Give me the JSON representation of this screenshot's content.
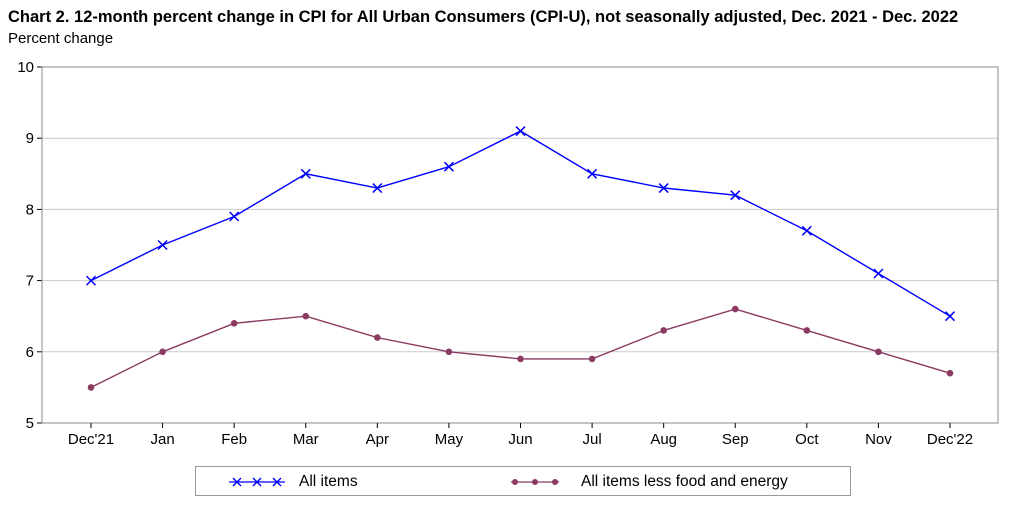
{
  "header": {
    "title": "Chart 2. 12-month percent change in CPI for All Urban Consumers (CPI-U), not seasonally adjusted, Dec. 2021 - Dec. 2022",
    "y_unit": "Percent change"
  },
  "legend": {
    "items": [
      {
        "label": "All items",
        "color": "#0000ff",
        "marker": "x-cross"
      },
      {
        "label": "All items less food and energy",
        "color": "#8b3a62",
        "marker": "dot"
      }
    ],
    "placement": "bottom-center"
  },
  "chart_data": {
    "type": "line",
    "title": "Chart 2. 12-month percent change in CPI for All Urban Consumers (CPI-U), not seasonally adjusted, Dec. 2021 - Dec. 2022",
    "xlabel": "",
    "ylabel": "Percent change",
    "categories": [
      "Dec'21",
      "Jan",
      "Feb",
      "Mar",
      "Apr",
      "May",
      "Jun",
      "Jul",
      "Aug",
      "Sep",
      "Oct",
      "Nov",
      "Dec'22"
    ],
    "ylim": [
      5,
      10
    ],
    "yticks": [
      5,
      6,
      7,
      8,
      9,
      10
    ],
    "grid": true,
    "series": [
      {
        "name": "All items",
        "color": "#0000ff",
        "marker": "x",
        "values": [
          7.0,
          7.5,
          7.9,
          8.5,
          8.3,
          8.6,
          9.1,
          8.5,
          8.3,
          8.2,
          7.7,
          7.1,
          6.5
        ]
      },
      {
        "name": "All items less food and energy",
        "color": "#8b3a62",
        "marker": "circle",
        "values": [
          5.5,
          6.0,
          6.4,
          6.5,
          6.2,
          6.0,
          5.9,
          5.9,
          6.3,
          6.6,
          6.3,
          6.0,
          5.7
        ]
      }
    ]
  }
}
